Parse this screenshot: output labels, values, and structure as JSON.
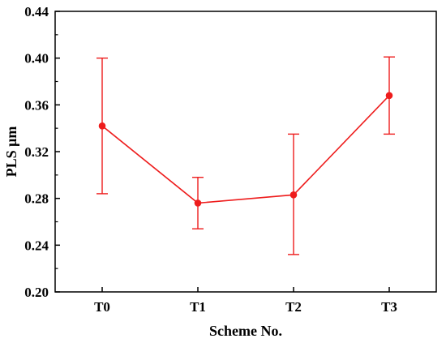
{
  "chart_data": {
    "type": "line",
    "title": "",
    "xlabel": "Scheme No.",
    "ylabel": "PLS μm",
    "categories": [
      "T0",
      "T1",
      "T2",
      "T3"
    ],
    "ylim": [
      0.2,
      0.44
    ],
    "yticks": [
      "0.20",
      "0.24",
      "0.28",
      "0.32",
      "0.36",
      "0.40",
      "0.44"
    ],
    "grid": false,
    "legend": "none",
    "series": [
      {
        "values": [
          0.342,
          0.276,
          0.283,
          0.368
        ],
        "error_low": [
          0.284,
          0.254,
          0.232,
          0.335
        ],
        "error_high": [
          0.4,
          0.298,
          0.335,
          0.401
        ],
        "color": "#ee1c1c"
      }
    ]
  }
}
